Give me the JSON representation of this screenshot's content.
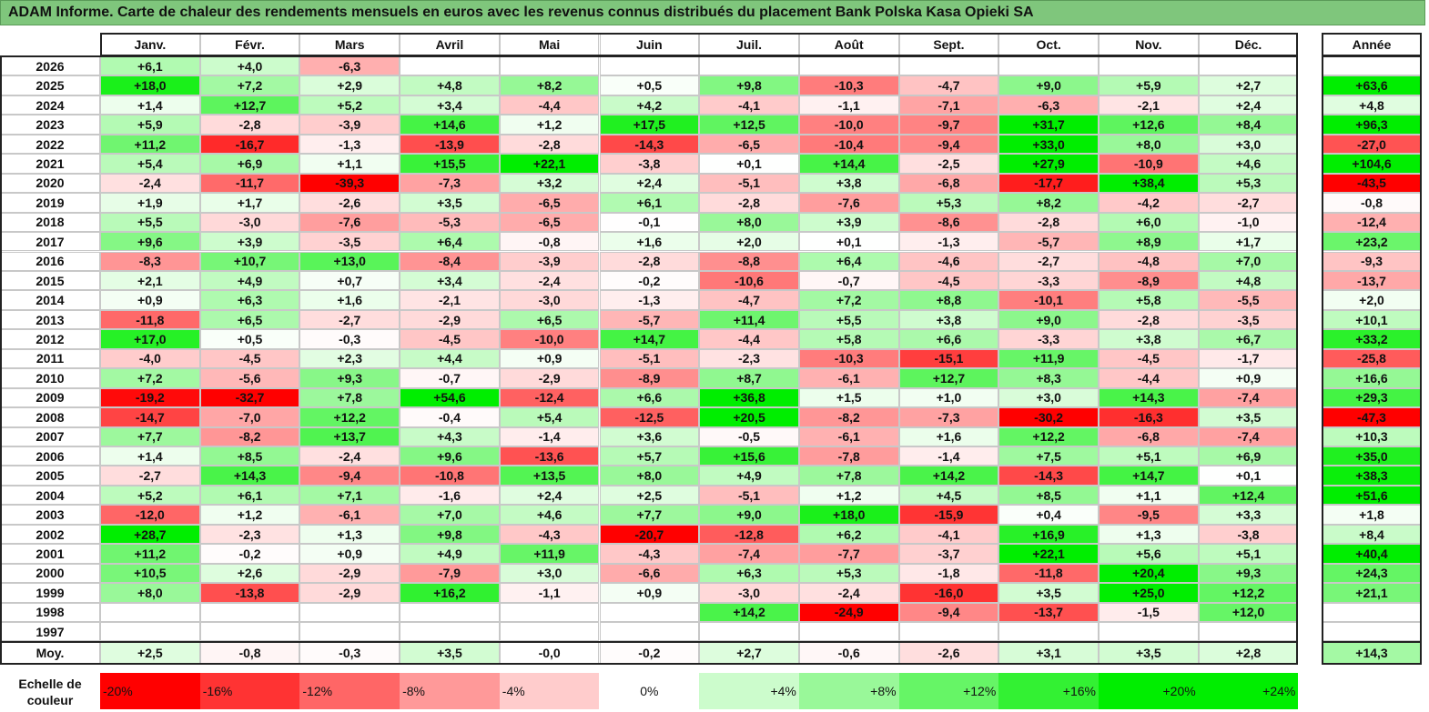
{
  "title": "ADAM Informe. Carte de chaleur des rendements mensuels en euros avec les revenus connus distribués du placement Bank Polska Kasa Opieki SA",
  "chart_data": {
    "type": "heatmap",
    "title": "ADAM Informe. Carte de chaleur des rendements mensuels en euros avec les revenus connus distribués du placement Bank Polska Kasa Opieki SA",
    "months": [
      "Janv.",
      "Févr.",
      "Mars",
      "Avril",
      "Mai",
      "Juin",
      "Juil.",
      "Août",
      "Sept.",
      "Oct.",
      "Nov.",
      "Déc."
    ],
    "year_header": "Année",
    "rows": [
      {
        "year": "2026",
        "values": [
          "+6,1",
          "+4,0",
          "-6,3",
          "",
          "",
          "",
          "",
          "",
          "",
          "",
          "",
          ""
        ],
        "annual": ""
      },
      {
        "year": "2025",
        "values": [
          "+18,0",
          "+7,2",
          "+2,9",
          "+4,8",
          "+8,2",
          "+0,5",
          "+9,8",
          "-10,3",
          "-4,7",
          "+9,0",
          "+5,9",
          "+2,7"
        ],
        "annual": "+63,6"
      },
      {
        "year": "2024",
        "values": [
          "+1,4",
          "+12,7",
          "+5,2",
          "+3,4",
          "-4,4",
          "+4,2",
          "-4,1",
          "-1,1",
          "-7,1",
          "-6,3",
          "-2,1",
          "+2,4"
        ],
        "annual": "+4,8"
      },
      {
        "year": "2023",
        "values": [
          "+5,9",
          "-2,8",
          "-3,9",
          "+14,6",
          "+1,2",
          "+17,5",
          "+12,5",
          "-10,0",
          "-9,7",
          "+31,7",
          "+12,6",
          "+8,4"
        ],
        "annual": "+96,3"
      },
      {
        "year": "2022",
        "values": [
          "+11,2",
          "-16,7",
          "-1,3",
          "-13,9",
          "-2,8",
          "-14,3",
          "-6,5",
          "-10,4",
          "-9,4",
          "+33,0",
          "+8,0",
          "+3,0"
        ],
        "annual": "-27,0"
      },
      {
        "year": "2021",
        "values": [
          "+5,4",
          "+6,9",
          "+1,1",
          "+15,5",
          "+22,1",
          "-3,8",
          "+0,1",
          "+14,4",
          "-2,5",
          "+27,9",
          "-10,9",
          "+4,6"
        ],
        "annual": "+104,6"
      },
      {
        "year": "2020",
        "values": [
          "-2,4",
          "-11,7",
          "-39,3",
          "-7,3",
          "+3,2",
          "+2,4",
          "-5,1",
          "+3,8",
          "-6,8",
          "-17,7",
          "+38,4",
          "+5,3"
        ],
        "annual": "-43,5"
      },
      {
        "year": "2019",
        "values": [
          "+1,9",
          "+1,7",
          "-2,6",
          "+3,5",
          "-6,5",
          "+6,1",
          "-2,8",
          "-7,6",
          "+5,3",
          "+8,2",
          "-4,2",
          "-2,7"
        ],
        "annual": "-0,8"
      },
      {
        "year": "2018",
        "values": [
          "+5,5",
          "-3,0",
          "-7,6",
          "-5,3",
          "-6,5",
          "-0,1",
          "+8,0",
          "+3,9",
          "-8,6",
          "-2,8",
          "+6,0",
          "-1,0"
        ],
        "annual": "-12,4"
      },
      {
        "year": "2017",
        "values": [
          "+9,6",
          "+3,9",
          "-3,5",
          "+6,4",
          "-0,8",
          "+1,6",
          "+2,0",
          "+0,1",
          "-1,3",
          "-5,7",
          "+8,9",
          "+1,7"
        ],
        "annual": "+23,2"
      },
      {
        "year": "2016",
        "values": [
          "-8,3",
          "+10,7",
          "+13,0",
          "-8,4",
          "-3,9",
          "-2,8",
          "-8,8",
          "+6,4",
          "-4,6",
          "-2,7",
          "-4,8",
          "+7,0"
        ],
        "annual": "-9,3"
      },
      {
        "year": "2015",
        "values": [
          "+2,1",
          "+4,9",
          "+0,7",
          "+3,4",
          "-2,4",
          "-0,2",
          "-10,6",
          "-0,7",
          "-4,5",
          "-3,3",
          "-8,9",
          "+4,8"
        ],
        "annual": "-13,7"
      },
      {
        "year": "2014",
        "values": [
          "+0,9",
          "+6,3",
          "+1,6",
          "-2,1",
          "-3,0",
          "-1,3",
          "-4,7",
          "+7,2",
          "+8,8",
          "-10,1",
          "+5,8",
          "-5,5"
        ],
        "annual": "+2,0"
      },
      {
        "year": "2013",
        "values": [
          "-11,8",
          "+6,5",
          "-2,7",
          "-2,9",
          "+6,5",
          "-5,7",
          "+11,4",
          "+5,5",
          "+3,8",
          "+9,0",
          "-2,8",
          "-3,5"
        ],
        "annual": "+10,1"
      },
      {
        "year": "2012",
        "values": [
          "+17,0",
          "+0,5",
          "-0,3",
          "-4,5",
          "-10,0",
          "+14,7",
          "-4,4",
          "+5,8",
          "+6,6",
          "-3,3",
          "+3,8",
          "+6,7"
        ],
        "annual": "+33,2"
      },
      {
        "year": "2011",
        "values": [
          "-4,0",
          "-4,5",
          "+2,3",
          "+4,4",
          "+0,9",
          "-5,1",
          "-2,3",
          "-10,3",
          "-15,1",
          "+11,9",
          "-4,5",
          "-1,7"
        ],
        "annual": "-25,8"
      },
      {
        "year": "2010",
        "values": [
          "+7,2",
          "-5,6",
          "+9,3",
          "-0,7",
          "-2,9",
          "-8,9",
          "+8,7",
          "-6,1",
          "+12,7",
          "+8,3",
          "-4,4",
          "+0,9"
        ],
        "annual": "+16,6"
      },
      {
        "year": "2009",
        "values": [
          "-19,2",
          "-32,7",
          "+7,8",
          "+54,6",
          "-12,4",
          "+6,6",
          "+36,8",
          "+1,5",
          "+1,0",
          "+3,0",
          "+14,3",
          "-7,4"
        ],
        "annual": "+29,3"
      },
      {
        "year": "2008",
        "values": [
          "-14,7",
          "-7,0",
          "+12,2",
          "-0,4",
          "+5,4",
          "-12,5",
          "+20,5",
          "-8,2",
          "-7,3",
          "-30,2",
          "-16,3",
          "+3,5"
        ],
        "annual": "-47,3"
      },
      {
        "year": "2007",
        "values": [
          "+7,7",
          "-8,2",
          "+13,7",
          "+4,3",
          "-1,4",
          "+3,6",
          "-0,5",
          "-6,1",
          "+1,6",
          "+12,2",
          "-6,8",
          "-7,4"
        ],
        "annual": "+10,3"
      },
      {
        "year": "2006",
        "values": [
          "+1,4",
          "+8,5",
          "-2,4",
          "+9,6",
          "-13,6",
          "+5,7",
          "+15,6",
          "-7,8",
          "-1,4",
          "+7,5",
          "+5,1",
          "+6,9"
        ],
        "annual": "+35,0"
      },
      {
        "year": "2005",
        "values": [
          "-2,7",
          "+14,3",
          "-9,4",
          "-10,8",
          "+13,5",
          "+8,0",
          "+4,9",
          "+7,8",
          "+14,2",
          "-14,3",
          "+14,7",
          "+0,1"
        ],
        "annual": "+38,3"
      },
      {
        "year": "2004",
        "values": [
          "+5,2",
          "+6,1",
          "+7,1",
          "-1,6",
          "+2,4",
          "+2,5",
          "-5,1",
          "+1,2",
          "+4,5",
          "+8,5",
          "+1,1",
          "+12,4"
        ],
        "annual": "+51,6"
      },
      {
        "year": "2003",
        "values": [
          "-12,0",
          "+1,2",
          "-6,1",
          "+7,0",
          "+4,6",
          "+7,7",
          "+9,0",
          "+18,0",
          "-15,9",
          "+0,4",
          "-9,5",
          "+3,3"
        ],
        "annual": "+1,8"
      },
      {
        "year": "2002",
        "values": [
          "+28,7",
          "-2,3",
          "+1,3",
          "+9,8",
          "-4,3",
          "-20,7",
          "-12,8",
          "+6,2",
          "-4,1",
          "+16,9",
          "+1,3",
          "-3,8"
        ],
        "annual": "+8,4"
      },
      {
        "year": "2001",
        "values": [
          "+11,2",
          "-0,2",
          "+0,9",
          "+4,9",
          "+11,9",
          "-4,3",
          "-7,4",
          "-7,7",
          "-3,7",
          "+22,1",
          "+5,6",
          "+5,1"
        ],
        "annual": "+40,4"
      },
      {
        "year": "2000",
        "values": [
          "+10,5",
          "+2,6",
          "-2,9",
          "-7,9",
          "+3,0",
          "-6,6",
          "+6,3",
          "+5,3",
          "-1,8",
          "-11,8",
          "+20,4",
          "+9,3"
        ],
        "annual": "+24,3"
      },
      {
        "year": "1999",
        "values": [
          "+8,0",
          "-13,8",
          "-2,9",
          "+16,2",
          "-1,1",
          "+0,9",
          "-3,0",
          "-2,4",
          "-16,0",
          "+3,5",
          "+25,0",
          "+12,2"
        ],
        "annual": "+21,1"
      },
      {
        "year": "1998",
        "values": [
          "",
          "",
          "",
          "",
          "",
          "",
          "+14,2",
          "-24,9",
          "-9,4",
          "-13,7",
          "-1,5",
          "+12,0"
        ],
        "annual": ""
      },
      {
        "year": "1997",
        "values": [
          "",
          "",
          "",
          "",
          "",
          "",
          "",
          "",
          "",
          "",
          "",
          ""
        ],
        "annual": ""
      }
    ],
    "average": {
      "label": "Moy.",
      "values": [
        "+2,5",
        "-0,8",
        "-0,3",
        "+3,5",
        "-0,0",
        "-0,2",
        "+2,7",
        "-0,6",
        "-2,6",
        "+3,1",
        "+3,5",
        "+2,8"
      ],
      "annual": "+14,3"
    },
    "scale": {
      "label": "Echelle de couleur",
      "steps": [
        {
          "label": "-20%",
          "value": -20
        },
        {
          "label": "-16%",
          "value": -16
        },
        {
          "label": "-12%",
          "value": -12
        },
        {
          "label": "-8%",
          "value": -8
        },
        {
          "label": "-4%",
          "value": -4
        },
        {
          "label": "0%",
          "value": 0
        },
        {
          "label": "+4%",
          "value": 4
        },
        {
          "label": "+8%",
          "value": 8
        },
        {
          "label": "+12%",
          "value": 12
        },
        {
          "label": "+16%",
          "value": 16
        },
        {
          "label": "+20%",
          "value": 20
        },
        {
          "label": "+24%",
          "value": 24
        }
      ]
    },
    "colors": {
      "negative": "#ff0000",
      "positive": "#00ee00",
      "neutral": "#ffffff",
      "title_bg": "#7fc67c"
    }
  }
}
